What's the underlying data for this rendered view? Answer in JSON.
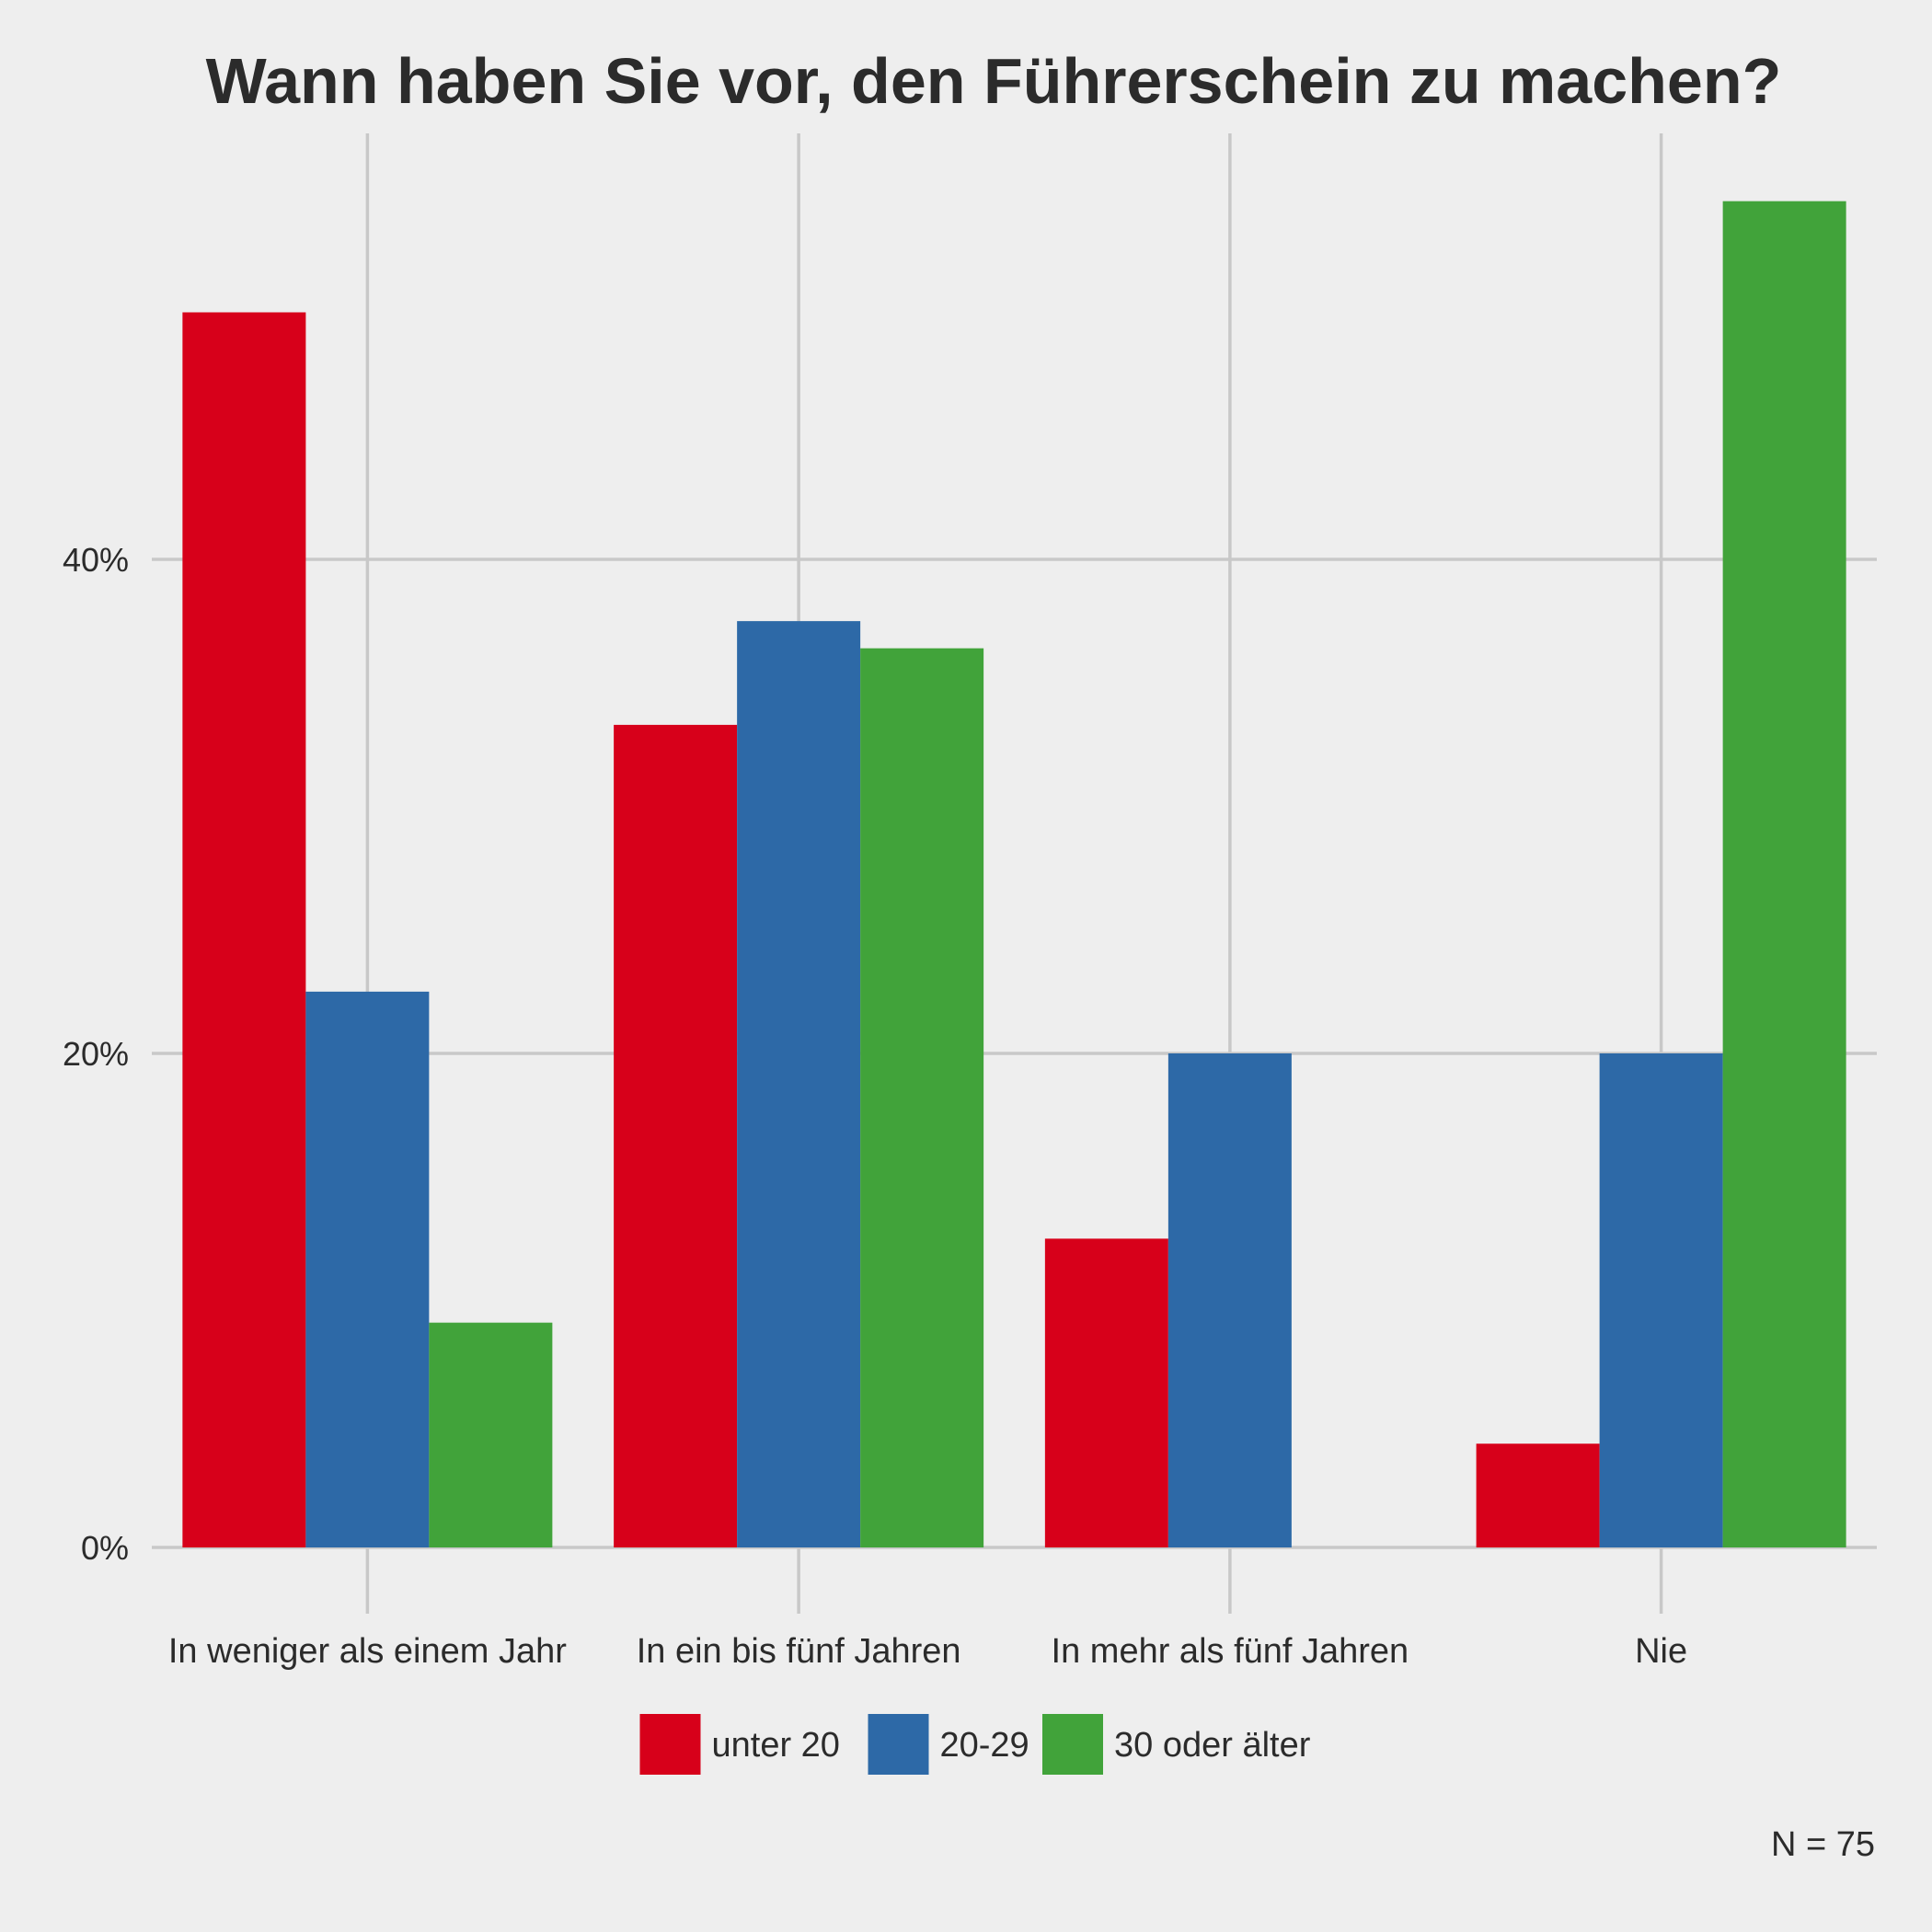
{
  "chart_data": {
    "type": "bar",
    "title": "Wann haben Sie vor, den Führerschein zu machen?",
    "categories": [
      "In weniger als einem Jahr",
      "In ein bis fünf Jahren",
      "In mehr als fünf Jahren",
      "Nie"
    ],
    "series": [
      {
        "name": "unter 20",
        "color": "#d7001a",
        "values": [
          50.0,
          33.3,
          12.5,
          4.2
        ]
      },
      {
        "name": "20-29",
        "color": "#2d69a7",
        "values": [
          22.5,
          37.5,
          20.0,
          20.0
        ]
      },
      {
        "name": "30 oder älter",
        "color": "#41a33a",
        "values": [
          9.1,
          36.4,
          0,
          54.5
        ]
      }
    ],
    "ylim": [
      0,
      57
    ],
    "yticks": [
      0,
      20,
      40
    ],
    "ytick_labels": [
      "0%",
      "20%",
      "40%"
    ],
    "grid": true,
    "legend": "bottom",
    "caption": "N = 75"
  }
}
